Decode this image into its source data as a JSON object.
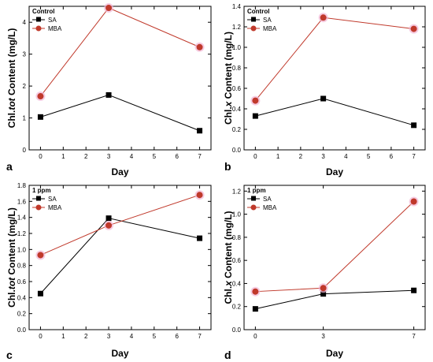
{
  "colors": {
    "sa": "#000000",
    "mba": "#c0392b",
    "mba_marker": "#c0392b",
    "mba_halo": "#f2b6d6"
  },
  "chart_data": [
    {
      "type": "line",
      "panel": "a",
      "legend_title": "Control",
      "xlabel": "Day",
      "ylabel_pre": "Chl.",
      "ylabel_italic": "tot",
      "ylabel_post": " Content (mg/L)",
      "x": [
        0,
        3,
        7
      ],
      "xlim": [
        -0.5,
        7.5
      ],
      "xticks": [
        0,
        1,
        2,
        3,
        4,
        5,
        6,
        7
      ],
      "ylim": [
        0,
        4.5
      ],
      "yticks": [
        0,
        1,
        2,
        3,
        4
      ],
      "series": [
        {
          "name": "SA",
          "values": [
            1.03,
            1.72,
            0.6
          ]
        },
        {
          "name": "MBA",
          "values": [
            1.68,
            4.45,
            3.22
          ]
        }
      ]
    },
    {
      "type": "line",
      "panel": "b",
      "legend_title": "Control",
      "xlabel": "Day",
      "ylabel_pre": "Chl.",
      "ylabel_italic": "x",
      "ylabel_post": " Content (mg/L)",
      "x": [
        0,
        3,
        7
      ],
      "xlim": [
        -0.5,
        7.5
      ],
      "xticks": [
        0,
        1,
        2,
        3,
        4,
        5,
        6,
        7
      ],
      "ylim": [
        0,
        1.4
      ],
      "yticks": [
        0.0,
        0.2,
        0.4,
        0.6,
        0.8,
        1.0,
        1.2,
        1.4
      ],
      "series": [
        {
          "name": "SA",
          "values": [
            0.33,
            0.5,
            0.24
          ]
        },
        {
          "name": "MBA",
          "values": [
            0.48,
            1.29,
            1.18
          ]
        }
      ]
    },
    {
      "type": "line",
      "panel": "c",
      "legend_title": "1 ppm",
      "xlabel": "Day",
      "ylabel_pre": "Chl.",
      "ylabel_italic": "tot",
      "ylabel_post": " Content (mg/L)",
      "x": [
        0,
        3,
        7
      ],
      "xlim": [
        -0.5,
        7.5
      ],
      "xticks": [
        0,
        1,
        2,
        3,
        4,
        5,
        6,
        7
      ],
      "ylim": [
        0,
        1.8
      ],
      "yticks": [
        0.0,
        0.2,
        0.4,
        0.6,
        0.8,
        1.0,
        1.2,
        1.4,
        1.6,
        1.8
      ],
      "series": [
        {
          "name": "SA",
          "values": [
            0.45,
            1.39,
            1.14
          ]
        },
        {
          "name": "MBA",
          "values": [
            0.93,
            1.3,
            1.68
          ]
        }
      ]
    },
    {
      "type": "line",
      "panel": "d",
      "legend_title": "1 ppm",
      "xlabel": "Day",
      "ylabel_pre": "Chl.",
      "ylabel_italic": "x",
      "ylabel_post": " Content (mg/L)",
      "x": [
        0,
        3,
        7
      ],
      "xlim": [
        -0.5,
        7.5
      ],
      "xticks": [
        0,
        3,
        7
      ],
      "ylim": [
        0,
        1.25
      ],
      "yticks": [
        0.0,
        0.2,
        0.4,
        0.6,
        0.8,
        1.0,
        1.2
      ],
      "series": [
        {
          "name": "SA",
          "values": [
            0.18,
            0.31,
            0.34
          ]
        },
        {
          "name": "MBA",
          "values": [
            0.33,
            0.36,
            1.11
          ]
        }
      ]
    }
  ]
}
